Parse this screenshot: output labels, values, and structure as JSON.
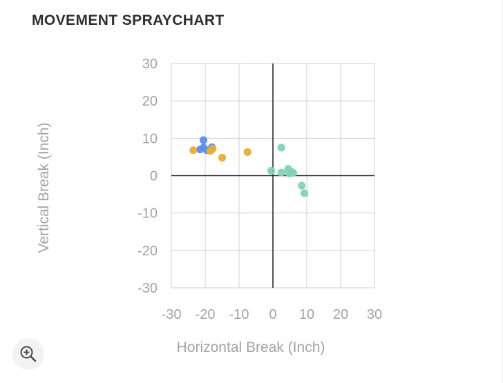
{
  "title": "MOVEMENT SPRAYCHART",
  "colors": {
    "blue": "#5b8def",
    "orange": "#e8ad33",
    "teal": "#7fd3b6",
    "grid": "#cfcfcf",
    "axis": "#2b2b2b",
    "tick_text": "#a3a3a3"
  },
  "zoom_icon": "zoom-in-icon",
  "chart_data": {
    "type": "scatter",
    "xlabel": "Horizontal Break (Inch)",
    "ylabel": "Vertical Break (Inch)",
    "xlim": [
      -30,
      30
    ],
    "ylim": [
      -30,
      30
    ],
    "xticks": [
      -30,
      -20,
      -10,
      0,
      10,
      20,
      30
    ],
    "yticks": [
      30,
      20,
      10,
      0,
      -10,
      -20,
      -30
    ],
    "grid": true,
    "legend": "none",
    "series": [
      {
        "color": "#5b8def",
        "points": [
          {
            "x": -20.5,
            "y": 9.5
          },
          {
            "x": -20.5,
            "y": 7.5
          },
          {
            "x": -21.5,
            "y": 7.0
          },
          {
            "x": -19.5,
            "y": 6.8
          },
          {
            "x": -18.0,
            "y": 7.6
          }
        ]
      },
      {
        "color": "#e8ad33",
        "points": [
          {
            "x": -23.5,
            "y": 6.8
          },
          {
            "x": -18.5,
            "y": 6.6
          },
          {
            "x": -17.8,
            "y": 7.2
          },
          {
            "x": -15.0,
            "y": 4.8
          },
          {
            "x": -7.5,
            "y": 6.3
          }
        ]
      },
      {
        "color": "#7fd3b6",
        "points": [
          {
            "x": 2.5,
            "y": 7.5
          },
          {
            "x": -0.5,
            "y": 1.3
          },
          {
            "x": 2.5,
            "y": 0.8
          },
          {
            "x": 4.5,
            "y": 1.8
          },
          {
            "x": 4.8,
            "y": 0.6
          },
          {
            "x": 5.5,
            "y": 1.0
          },
          {
            "x": 6.0,
            "y": 0.7
          },
          {
            "x": 8.5,
            "y": -2.7
          },
          {
            "x": 9.3,
            "y": -4.7
          }
        ]
      }
    ]
  }
}
